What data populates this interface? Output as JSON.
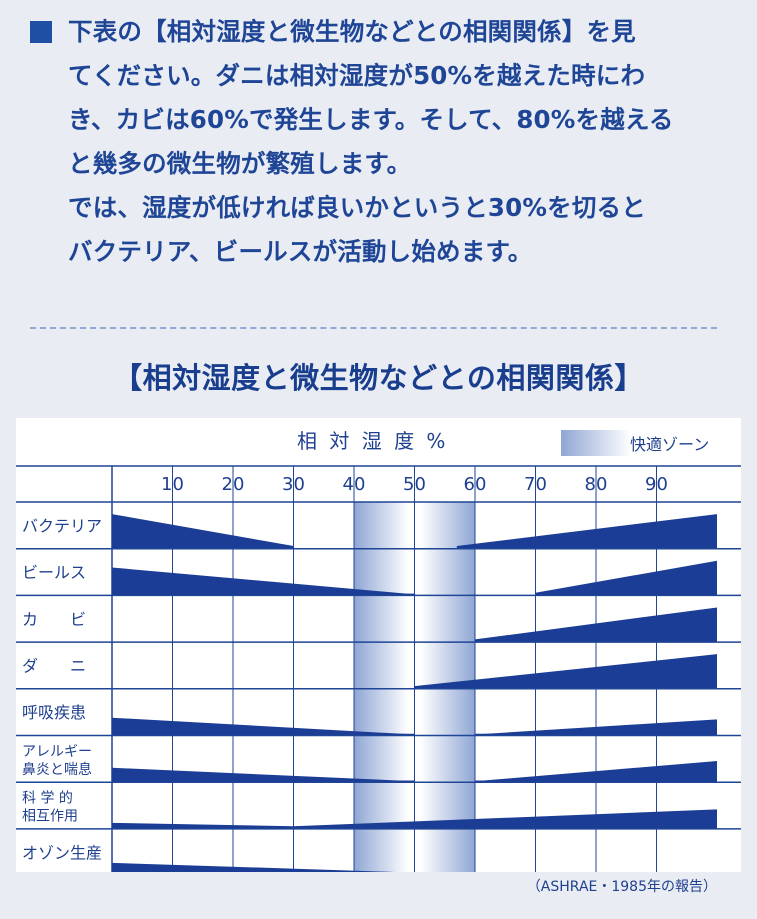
{
  "intro": {
    "lines": [
      "下表の【相対湿度と微生物などとの相関関係】を見",
      "てください。ダニは相対湿度が50%を越えた時にわ",
      "き、カビは60%で発生します。そして、80%を越える",
      "と幾多の微生物が繁殖します。",
      "では、湿度が低ければ良いかというと30%を切ると",
      "バクテリア、ビールスが活動し始めます。"
    ]
  },
  "section_title": "【相対湿度と微生物などとの相関関係】",
  "chart_data": {
    "type": "area",
    "header": "相 対 湿 度 %",
    "legend": "快適ゾーン",
    "comfort_zone": [
      40,
      60
    ],
    "x_ticks": [
      10,
      20,
      30,
      40,
      50,
      60,
      70,
      80,
      90
    ],
    "xlim": [
      0,
      100
    ],
    "rows": [
      {
        "label": [
          "バクテリア"
        ],
        "segments": [
          {
            "x": [
              0,
              30
            ],
            "h": [
              1.0,
              0.05
            ]
          },
          {
            "x": [
              57,
              100
            ],
            "h": [
              0.05,
              1.0
            ]
          }
        ]
      },
      {
        "label": [
          "ビールス"
        ],
        "segments": [
          {
            "x": [
              0,
              50
            ],
            "h": [
              0.8,
              0.0
            ]
          },
          {
            "x": [
              70,
              100
            ],
            "h": [
              0.05,
              1.0
            ]
          }
        ]
      },
      {
        "label": [
          "カ　　ビ"
        ],
        "segments": [
          {
            "x": [
              60,
              100
            ],
            "h": [
              0.05,
              1.0
            ]
          }
        ]
      },
      {
        "label": [
          "ダ　　ニ"
        ],
        "segments": [
          {
            "x": [
              50,
              100
            ],
            "h": [
              0.05,
              1.0
            ]
          }
        ]
      },
      {
        "label": [
          "呼吸疾患"
        ],
        "segments": [
          {
            "x": [
              0,
              50
            ],
            "h": [
              0.5,
              0.0
            ]
          },
          {
            "x": [
              60,
              100
            ],
            "h": [
              0.0,
              0.45
            ]
          }
        ]
      },
      {
        "label": [
          "アレルギー",
          "鼻炎と喘息"
        ],
        "segments": [
          {
            "x": [
              0,
              50
            ],
            "h": [
              0.4,
              0.0
            ]
          },
          {
            "x": [
              60,
              100
            ],
            "h": [
              0.0,
              0.6
            ]
          }
        ]
      },
      {
        "label": [
          "科 学 的",
          "相互作用"
        ],
        "segments": [
          {
            "x": [
              0,
              30
            ],
            "h": [
              0.15,
              0.05
            ]
          },
          {
            "x": [
              30,
              100
            ],
            "h": [
              0.05,
              0.55
            ]
          }
        ]
      },
      {
        "label": [
          "オゾン生産"
        ],
        "segments": [
          {
            "x": [
              0,
              60
            ],
            "h": [
              0.35,
              0.0
            ]
          }
        ]
      }
    ]
  },
  "source": "（ASHRAE・1985年の報告）",
  "colors": {
    "accent": "#1f4fa5",
    "band": "#1c3d95",
    "grid": "#1f4596"
  }
}
